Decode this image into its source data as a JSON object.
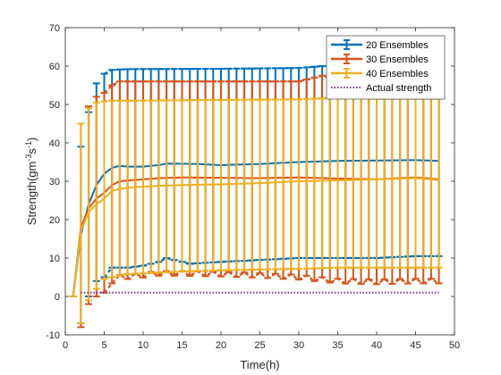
{
  "chart_data": {
    "type": "line",
    "title": "",
    "xlabel": "Time(h)",
    "ylabel_prefix": "Strength(gm",
    "ylabel_sup1": "-3",
    "ylabel_mid": "s",
    "ylabel_sup2": "-1",
    "ylabel_suffix": ")",
    "xlim": [
      0,
      50
    ],
    "ylim": [
      -10,
      70
    ],
    "xticks": [
      0,
      5,
      10,
      15,
      20,
      25,
      30,
      35,
      40,
      45,
      50
    ],
    "yticks": [
      -10,
      0,
      10,
      20,
      30,
      40,
      50,
      60,
      70
    ],
    "grid": false,
    "legend_position": "top-right",
    "x": [
      1,
      2,
      3,
      4,
      5,
      6,
      7,
      8,
      9,
      10,
      11,
      12,
      13,
      14,
      15,
      16,
      17,
      18,
      19,
      20,
      21,
      22,
      23,
      24,
      25,
      26,
      27,
      28,
      29,
      30,
      31,
      32,
      33,
      34,
      35,
      36,
      37,
      38,
      39,
      40,
      41,
      42,
      43,
      44,
      45,
      46,
      47,
      48
    ],
    "series": [
      {
        "name": "20 Ensembles",
        "color": "#0072BD",
        "key_points": [
          [
            1,
            0
          ],
          [
            2,
            16
          ],
          [
            3,
            24
          ],
          [
            4,
            29
          ],
          [
            5,
            32
          ],
          [
            6,
            33.5
          ],
          [
            7,
            34
          ],
          [
            8,
            33.8
          ],
          [
            10,
            33.8
          ],
          [
            12,
            34.2
          ],
          [
            13,
            34.6
          ],
          [
            17,
            34.5
          ],
          [
            20,
            34.2
          ],
          [
            25,
            34.5
          ],
          [
            30,
            35
          ],
          [
            35,
            35.3
          ],
          [
            40,
            35.4
          ],
          [
            45,
            35.5
          ],
          [
            48,
            35.3
          ]
        ],
        "upper_key": [
          [
            1,
            0
          ],
          [
            2,
            39
          ],
          [
            3,
            48
          ],
          [
            4,
            55.5
          ],
          [
            5,
            58
          ],
          [
            6,
            59
          ],
          [
            8,
            59.2
          ],
          [
            20,
            59.3
          ],
          [
            30,
            59.5
          ],
          [
            33,
            60
          ],
          [
            40,
            60
          ],
          [
            48,
            60
          ]
        ],
        "lower_key": [
          [
            1,
            0
          ],
          [
            2,
            -7
          ],
          [
            3,
            0
          ],
          [
            4,
            4
          ],
          [
            5,
            5
          ],
          [
            6,
            7.5
          ],
          [
            8,
            7.5
          ],
          [
            10,
            8
          ],
          [
            12,
            9
          ],
          [
            13,
            10
          ],
          [
            16,
            8.5
          ],
          [
            20,
            9
          ],
          [
            25,
            9.5
          ],
          [
            30,
            10
          ],
          [
            35,
            10
          ],
          [
            40,
            10
          ],
          [
            45,
            10.5
          ],
          [
            48,
            10.5
          ]
        ]
      },
      {
        "name": "30 Ensembles",
        "color": "#D95319",
        "key_points": [
          [
            1,
            0
          ],
          [
            2,
            18
          ],
          [
            3,
            23
          ],
          [
            4,
            25.5
          ],
          [
            5,
            27
          ],
          [
            6,
            29
          ],
          [
            7,
            30
          ],
          [
            8,
            30.2
          ],
          [
            10,
            30.5
          ],
          [
            12,
            30.8
          ],
          [
            15,
            31
          ],
          [
            20,
            30.9
          ],
          [
            25,
            30.8
          ],
          [
            30,
            31
          ],
          [
            35,
            30.7
          ],
          [
            40,
            30.5
          ],
          [
            45,
            31
          ],
          [
            48,
            30.5
          ]
        ],
        "upper_key": [
          [
            1,
            0
          ],
          [
            2,
            45
          ],
          [
            3,
            49.5
          ],
          [
            4,
            52
          ],
          [
            5,
            53
          ],
          [
            6,
            55
          ],
          [
            7,
            56
          ],
          [
            10,
            56
          ],
          [
            20,
            56
          ],
          [
            30,
            56
          ],
          [
            33,
            57.5
          ],
          [
            35,
            56.5
          ],
          [
            40,
            56
          ],
          [
            48,
            56
          ]
        ],
        "lower_key": [
          [
            1,
            0
          ],
          [
            2,
            -8
          ],
          [
            3,
            -2
          ],
          [
            4,
            0
          ],
          [
            5,
            1
          ],
          [
            6,
            4
          ],
          [
            7,
            5
          ],
          [
            9,
            5.3
          ],
          [
            12,
            6
          ],
          [
            15,
            6
          ],
          [
            20,
            5.8
          ],
          [
            25,
            5.5
          ],
          [
            30,
            5
          ],
          [
            35,
            4
          ],
          [
            40,
            3.8
          ],
          [
            45,
            4
          ],
          [
            48,
            4
          ]
        ],
        "lower_wiggle_amp": 0.6
      },
      {
        "name": "40 Ensembles",
        "color": "#EDB120",
        "key_points": [
          [
            1,
            0
          ],
          [
            2,
            17
          ],
          [
            3,
            22
          ],
          [
            4,
            24
          ],
          [
            5,
            25.5
          ],
          [
            6,
            27.5
          ],
          [
            7,
            28
          ],
          [
            8,
            28.3
          ],
          [
            10,
            28.6
          ],
          [
            12,
            28.8
          ],
          [
            15,
            29
          ],
          [
            20,
            29.2
          ],
          [
            25,
            29.5
          ],
          [
            30,
            30
          ],
          [
            35,
            30.2
          ],
          [
            40,
            30.5
          ],
          [
            45,
            30.8
          ],
          [
            48,
            30.3
          ]
        ],
        "upper_key": [
          [
            1,
            0
          ],
          [
            2,
            45
          ],
          [
            3,
            49
          ],
          [
            4,
            50.5
          ],
          [
            5,
            50.8
          ],
          [
            6,
            51
          ],
          [
            10,
            51
          ],
          [
            20,
            51.2
          ],
          [
            30,
            51.3
          ],
          [
            35,
            51.8
          ],
          [
            40,
            51.5
          ],
          [
            48,
            51.5
          ]
        ],
        "lower_key": [
          [
            1,
            0
          ],
          [
            2,
            -7
          ],
          [
            3,
            -1
          ],
          [
            4,
            2
          ],
          [
            5,
            4.5
          ],
          [
            6,
            5
          ],
          [
            7,
            5.5
          ],
          [
            8,
            5.8
          ],
          [
            10,
            6
          ],
          [
            15,
            6.5
          ],
          [
            20,
            6.8
          ],
          [
            25,
            7
          ],
          [
            30,
            7.2
          ],
          [
            35,
            7.5
          ],
          [
            40,
            7.5
          ],
          [
            45,
            7.5
          ],
          [
            48,
            7.5
          ]
        ]
      },
      {
        "name": "Actual strength",
        "color": "#7E2F8E",
        "style": "dotted",
        "x": [
          2,
          48
        ],
        "values": [
          1,
          1
        ]
      }
    ]
  }
}
